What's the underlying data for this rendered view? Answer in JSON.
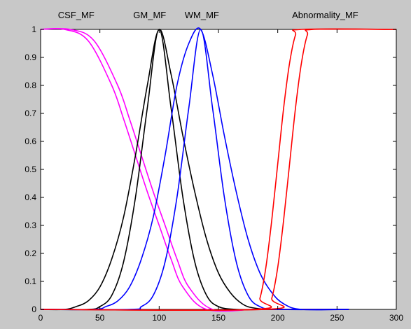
{
  "chart_data": {
    "type": "line",
    "title": "",
    "xlabel": "",
    "ylabel": "",
    "xlim": [
      0,
      300
    ],
    "ylim": [
      0,
      1
    ],
    "xticks": [
      0,
      50,
      100,
      150,
      200,
      250,
      300
    ],
    "yticks": [
      0,
      0.1,
      0.2,
      0.3,
      0.4,
      0.5,
      0.6,
      0.7,
      0.8,
      0.9,
      1
    ],
    "grid": false,
    "legend": "none",
    "annotations": [
      {
        "text": "CSF_MF",
        "x": 30
      },
      {
        "text": "GM_MF",
        "x": 92
      },
      {
        "text": "WM_MF",
        "x": 136
      },
      {
        "text": "Abnormality_MF",
        "x": 240
      }
    ],
    "series": [
      {
        "group": "CSF_MF",
        "color": "#ff00ff",
        "x": [
          0,
          20,
          40,
          60,
          70,
          80,
          90,
          100,
          110,
          120,
          140,
          180,
          200,
          260
        ],
        "y": [
          1,
          1,
          0.96,
          0.8,
          0.68,
          0.55,
          0.42,
          0.3,
          0.18,
          0.08,
          0,
          0,
          0,
          0
        ]
      },
      {
        "group": "CSF_MF",
        "color": "#ff00ff",
        "x": [
          0,
          25,
          45,
          65,
          75,
          85,
          95,
          105,
          115,
          125,
          145,
          180,
          200,
          260
        ],
        "y": [
          1,
          1,
          0.96,
          0.8,
          0.68,
          0.55,
          0.42,
          0.3,
          0.18,
          0.08,
          0,
          0,
          0,
          0
        ]
      },
      {
        "group": "GM_MF",
        "color": "#000000",
        "x": [
          0,
          40,
          50,
          60,
          70,
          80,
          90,
          100,
          110,
          120,
          130,
          140,
          150,
          165,
          190,
          260
        ],
        "y": [
          0,
          0,
          0.01,
          0.05,
          0.17,
          0.4,
          0.72,
          1,
          0.72,
          0.4,
          0.17,
          0.05,
          0.01,
          0,
          0,
          0
        ]
      },
      {
        "group": "GM_MF",
        "color": "#000000",
        "x": [
          0,
          20,
          30,
          40,
          50,
          60,
          70,
          80,
          90,
          100,
          110,
          120,
          130,
          140,
          150,
          160,
          170,
          180,
          200,
          260
        ],
        "y": [
          0,
          0,
          0.01,
          0.03,
          0.08,
          0.18,
          0.33,
          0.55,
          0.8,
          1,
          0.84,
          0.62,
          0.42,
          0.25,
          0.13,
          0.06,
          0.02,
          0.005,
          0,
          0
        ]
      },
      {
        "group": "WM_MF",
        "color": "#0000ff",
        "x": [
          0,
          75,
          85,
          95,
          105,
          115,
          125,
          135,
          145,
          155,
          165,
          175,
          185,
          200,
          260
        ],
        "y": [
          0,
          0,
          0.01,
          0.05,
          0.17,
          0.4,
          0.72,
          1,
          0.72,
          0.4,
          0.17,
          0.05,
          0.01,
          0,
          0
        ]
      },
      {
        "group": "WM_MF",
        "color": "#0000ff",
        "x": [
          0,
          45,
          55,
          65,
          75,
          85,
          95,
          105,
          115,
          125,
          135,
          145,
          155,
          165,
          175,
          185,
          195,
          205,
          220,
          260
        ],
        "y": [
          0,
          0,
          0.01,
          0.03,
          0.08,
          0.18,
          0.33,
          0.55,
          0.8,
          0.95,
          1,
          0.84,
          0.62,
          0.42,
          0.25,
          0.13,
          0.06,
          0.02,
          0,
          0
        ]
      },
      {
        "group": "Abnormality_MF",
        "color": "#ff0000",
        "x": [
          0,
          180,
          185,
          190,
          195,
          200,
          205,
          210,
          215,
          220,
          300
        ],
        "y": [
          0,
          0,
          0.04,
          0.15,
          0.32,
          0.52,
          0.72,
          0.88,
          0.98,
          1,
          1
        ]
      },
      {
        "group": "Abnormality_MF",
        "color": "#ff0000",
        "x": [
          0,
          190,
          195,
          200,
          205,
          210,
          215,
          220,
          225,
          230,
          300
        ],
        "y": [
          0,
          0,
          0.04,
          0.15,
          0.32,
          0.52,
          0.72,
          0.88,
          0.98,
          1,
          1
        ]
      }
    ]
  }
}
